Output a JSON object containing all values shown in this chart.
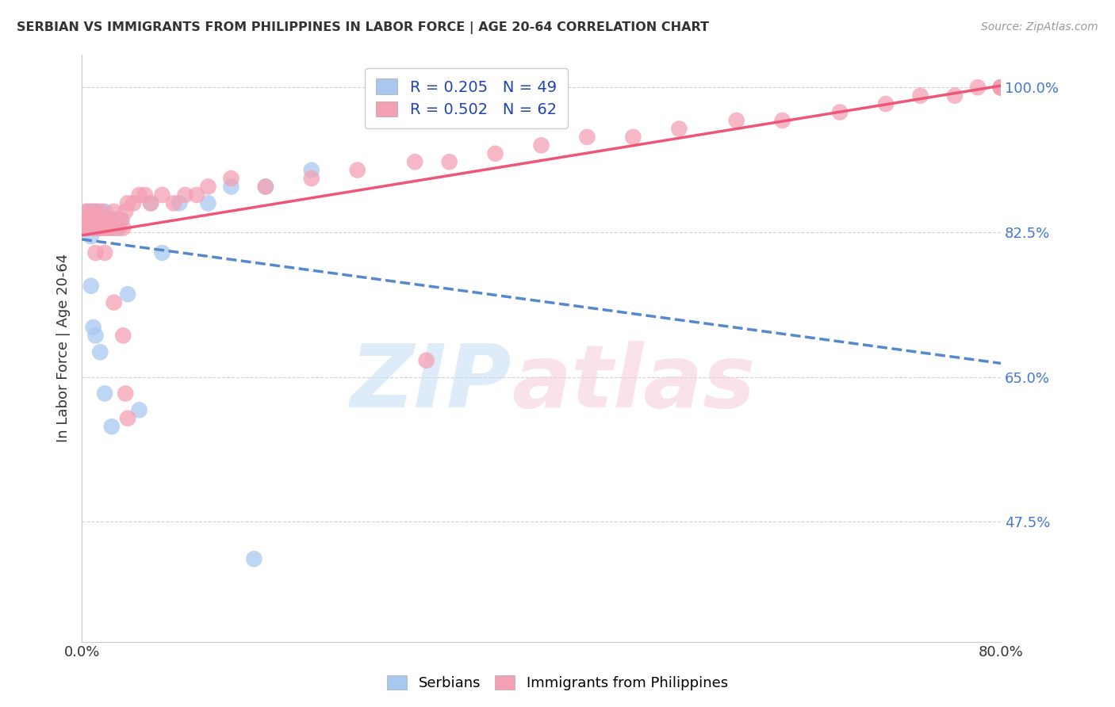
{
  "title": "SERBIAN VS IMMIGRANTS FROM PHILIPPINES IN LABOR FORCE | AGE 20-64 CORRELATION CHART",
  "source": "Source: ZipAtlas.com",
  "ylabel": "In Labor Force | Age 20-64",
  "ytick_labels": [
    "100.0%",
    "82.5%",
    "65.0%",
    "47.5%"
  ],
  "ytick_values": [
    1.0,
    0.825,
    0.65,
    0.475
  ],
  "xlim": [
    0.0,
    0.8
  ],
  "ylim": [
    0.33,
    1.04
  ],
  "color_serbian": "#a8c8f0",
  "color_philippines": "#f4a0b4",
  "color_trendline_serbian": "#5588cc",
  "color_trendline_philippines": "#ee5577",
  "legend_label_s": "R = 0.205   N = 49",
  "legend_label_p": "R = 0.502   N = 62",
  "serbian_x": [
    0.002,
    0.003,
    0.004,
    0.005,
    0.005,
    0.006,
    0.007,
    0.007,
    0.008,
    0.008,
    0.009,
    0.009,
    0.01,
    0.01,
    0.011,
    0.011,
    0.012,
    0.012,
    0.013,
    0.013,
    0.014,
    0.014,
    0.015,
    0.015,
    0.016,
    0.016,
    0.017,
    0.018,
    0.019,
    0.02,
    0.021,
    0.022,
    0.023,
    0.024,
    0.025,
    0.026,
    0.028,
    0.03,
    0.032,
    0.035,
    0.04,
    0.05,
    0.06,
    0.07,
    0.085,
    0.11,
    0.13,
    0.16,
    0.2
  ],
  "serbian_y": [
    0.84,
    0.83,
    0.84,
    0.84,
    0.85,
    0.83,
    0.83,
    0.84,
    0.83,
    0.82,
    0.84,
    0.85,
    0.83,
    0.84,
    0.85,
    0.84,
    0.84,
    0.83,
    0.84,
    0.83,
    0.84,
    0.85,
    0.84,
    0.83,
    0.84,
    0.83,
    0.83,
    0.84,
    0.84,
    0.85,
    0.84,
    0.84,
    0.83,
    0.84,
    0.83,
    0.84,
    0.83,
    0.84,
    0.83,
    0.84,
    0.75,
    0.61,
    0.86,
    0.8,
    0.86,
    0.86,
    0.88,
    0.88,
    0.9
  ],
  "serbian_y_outliers": [
    0.76,
    0.71,
    0.7,
    0.68,
    0.63,
    0.59,
    0.43
  ],
  "serbian_x_outliers": [
    0.008,
    0.01,
    0.012,
    0.016,
    0.02,
    0.026,
    0.15
  ],
  "philippines_x": [
    0.002,
    0.003,
    0.004,
    0.005,
    0.006,
    0.007,
    0.008,
    0.009,
    0.01,
    0.011,
    0.012,
    0.013,
    0.014,
    0.015,
    0.016,
    0.017,
    0.018,
    0.019,
    0.02,
    0.022,
    0.024,
    0.026,
    0.028,
    0.03,
    0.032,
    0.034,
    0.036,
    0.038,
    0.04,
    0.045,
    0.05,
    0.055,
    0.06,
    0.07,
    0.08,
    0.09,
    0.1,
    0.11,
    0.13,
    0.16,
    0.2,
    0.24,
    0.29,
    0.32,
    0.36,
    0.4,
    0.44,
    0.48,
    0.52,
    0.57,
    0.61,
    0.66,
    0.7,
    0.73,
    0.76,
    0.78,
    0.8,
    0.8,
    0.8,
    0.8,
    0.8,
    0.8
  ],
  "philippines_y": [
    0.84,
    0.83,
    0.85,
    0.83,
    0.84,
    0.83,
    0.85,
    0.84,
    0.84,
    0.83,
    0.85,
    0.84,
    0.83,
    0.84,
    0.83,
    0.85,
    0.84,
    0.83,
    0.84,
    0.83,
    0.84,
    0.83,
    0.85,
    0.84,
    0.83,
    0.84,
    0.83,
    0.85,
    0.86,
    0.86,
    0.87,
    0.87,
    0.86,
    0.87,
    0.86,
    0.87,
    0.87,
    0.88,
    0.89,
    0.88,
    0.89,
    0.9,
    0.91,
    0.91,
    0.92,
    0.93,
    0.94,
    0.94,
    0.95,
    0.96,
    0.96,
    0.97,
    0.98,
    0.99,
    0.99,
    1.0,
    1.0,
    1.0,
    1.0,
    1.0,
    1.0,
    1.0
  ],
  "philippines_y_outliers": [
    0.84,
    0.8,
    0.8,
    0.74,
    0.7,
    0.67,
    0.63,
    0.6
  ],
  "philippines_x_outliers": [
    0.008,
    0.012,
    0.02,
    0.028,
    0.036,
    0.3,
    0.038,
    0.04
  ]
}
